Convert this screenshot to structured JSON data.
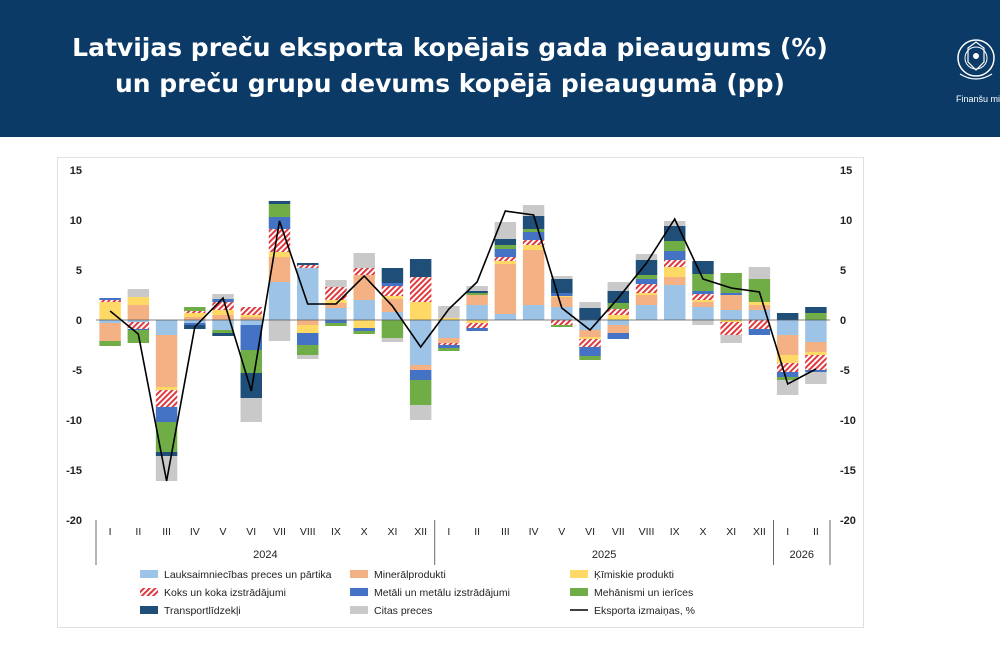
{
  "header": {
    "title_line1": "Latvijas preču eksporta kopējais gada pieaugums (%)",
    "title_line2": "un preču grupu devums kopējā pieaugumā (pp)",
    "logo_text": "Finanšu mi"
  },
  "colors": {
    "header_bg": "#0b3a67",
    "agri": "#9dc3e6",
    "mineral": "#f4b183",
    "chem": "#ffd966",
    "wood": "#e0393e",
    "metal": "#4472c4",
    "mech": "#70ad47",
    "transport": "#1f4e79",
    "other": "#c9c9c9",
    "line": "#000000"
  },
  "chart_data": {
    "type": "bar",
    "stacked": true,
    "title": "Latvijas preču eksporta kopējais gada pieaugums (%) un preču grupu devums kopējā pieaugumā (pp)",
    "categories": [
      "I",
      "II",
      "III",
      "IV",
      "V",
      "VI",
      "VII",
      "VIII",
      "IX",
      "X",
      "XI",
      "XII",
      "I",
      "II",
      "III",
      "IV",
      "V",
      "VI",
      "VII",
      "VIII",
      "IX",
      "X",
      "XI",
      "XII",
      "I",
      "II"
    ],
    "year_groups": [
      {
        "label": "2024",
        "count": 12
      },
      {
        "label": "2025",
        "count": 12
      },
      {
        "label": "2026",
        "count": 2
      }
    ],
    "ylim": [
      -20,
      15
    ],
    "yticks": [
      -20,
      -15,
      -10,
      -5,
      0,
      5,
      10,
      15
    ],
    "series": [
      {
        "name": "Lauksaimniecības preces un pārtika",
        "key": "agri",
        "values": [
          -0.3,
          -0.2,
          -1.5,
          -0.3,
          -1.0,
          -0.5,
          3.8,
          5.2,
          1.2,
          2.0,
          0.8,
          -4.5,
          -1.8,
          1.5,
          0.6,
          1.5,
          1.3,
          -1.0,
          -0.5,
          1.5,
          3.5,
          1.3,
          1.0,
          1.0,
          -1.5,
          -2.2
        ]
      },
      {
        "name": "Minerālprodukti",
        "key": "mineral",
        "values": [
          -1.8,
          1.5,
          -5.2,
          0.3,
          0.5,
          0.3,
          2.5,
          -0.5,
          0.5,
          2.5,
          1.3,
          -0.5,
          -0.5,
          1.0,
          5.0,
          5.5,
          1.0,
          -0.7,
          -0.8,
          1.0,
          0.8,
          0.5,
          1.5,
          0.5,
          -2.0,
          -1.0
        ]
      },
      {
        "name": "Ķīmiskie produkti",
        "key": "chem",
        "values": [
          1.8,
          0.8,
          -0.3,
          0.4,
          0.5,
          0.2,
          0.5,
          -0.8,
          0.3,
          -0.8,
          0.3,
          1.8,
          0.2,
          -0.3,
          0.3,
          0.5,
          0.1,
          -0.2,
          0.5,
          0.2,
          1.0,
          0.2,
          -0.2,
          0.3,
          -0.8,
          -0.3
        ]
      },
      {
        "name": "Koks un koka izstrādājumi",
        "key": "wood",
        "values": [
          0.2,
          -0.7,
          -1.7,
          0.2,
          0.8,
          0.8,
          2.3,
          0.3,
          1.3,
          0.7,
          1.0,
          2.5,
          -0.2,
          -0.5,
          0.4,
          0.5,
          -0.5,
          -0.8,
          0.6,
          0.9,
          0.7,
          0.6,
          -1.3,
          -0.9,
          -0.9,
          -1.5
        ]
      },
      {
        "name": "Metāli un metālu izstrādājumi",
        "key": "metal",
        "values": [
          0.2,
          -0.1,
          -1.5,
          -0.2,
          0.3,
          -2.5,
          1.2,
          -1.2,
          -0.3,
          -0.3,
          0.3,
          -1.0,
          -0.3,
          -0.3,
          0.8,
          0.8,
          0.3,
          -0.9,
          -0.6,
          0.5,
          0.9,
          0.3,
          0.2,
          -0.6,
          -0.5,
          -0.2
        ]
      },
      {
        "name": "Mehānismi un ierīces",
        "key": "mech",
        "values": [
          -0.5,
          -1.3,
          -3.0,
          0.4,
          -0.3,
          -2.3,
          1.3,
          -1.0,
          -0.3,
          -0.3,
          -1.8,
          -2.5,
          -0.3,
          0.2,
          0.4,
          0.3,
          -0.2,
          -0.4,
          0.6,
          0.4,
          1.0,
          1.7,
          2.0,
          2.3,
          -0.3,
          0.7
        ]
      },
      {
        "name": "Transportlīdzekļi",
        "key": "transport",
        "values": [
          0.0,
          0.0,
          -0.4,
          -0.4,
          -0.3,
          -2.5,
          0.3,
          0.2,
          0.0,
          0.0,
          1.5,
          1.8,
          0.0,
          0.2,
          0.6,
          1.3,
          1.4,
          1.2,
          1.2,
          1.5,
          1.5,
          1.3,
          0.0,
          0.0,
          0.7,
          0.6
        ]
      },
      {
        "name": "Citas preces",
        "key": "other",
        "values": [
          0.0,
          0.8,
          -2.5,
          0.0,
          0.5,
          -2.4,
          -2.1,
          -0.4,
          0.7,
          1.5,
          -0.4,
          -1.5,
          1.2,
          0.5,
          1.7,
          1.1,
          0.3,
          0.6,
          0.9,
          0.6,
          0.5,
          -0.5,
          -0.8,
          1.2,
          -1.5,
          -1.2
        ]
      }
    ],
    "line": {
      "name": "Eksporta izmaiņas, %",
      "values": [
        0.9,
        -1.4,
        -16.1,
        -0.7,
        2.2,
        -7.1,
        9.9,
        1.6,
        1.6,
        4.4,
        1.4,
        -2.7,
        1.1,
        3.8,
        10.9,
        10.5,
        1.2,
        -1.0,
        2.2,
        5.7,
        10.1,
        4.1,
        3.2,
        2.8,
        -6.4,
        -4.9
      ]
    },
    "legend": [
      "Lauksaimniecības preces un pārtika",
      "Minerālprodukti",
      "Ķīmiskie produkti",
      "Koks un koka izstrādājumi",
      "Metāli un metālu izstrādājumi",
      "Mehānismi un ierīces",
      "Transportlīdzekļi",
      "Citas preces",
      "Eksporta izmaiņas, %"
    ],
    "legend_position": "bottom"
  }
}
